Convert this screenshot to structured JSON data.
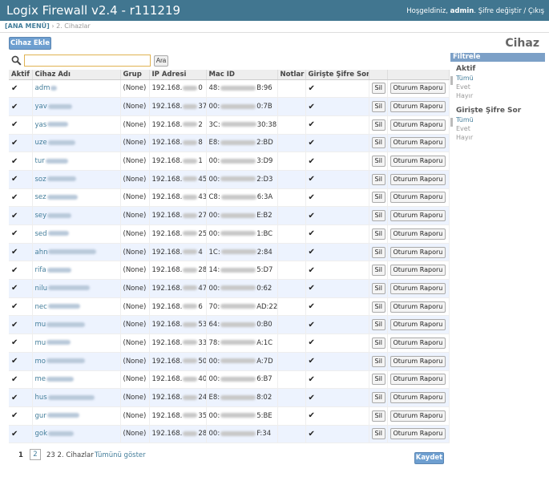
{
  "header": {
    "brand": "Logix Firewall v2.4 - r111219",
    "welcome": "Hoşgeldiniz,",
    "user": "admin",
    "change_password": "Şifre değiştir",
    "separator": "/",
    "logout": "Çıkış"
  },
  "breadcrumb": {
    "home": "[ANA MENÜ]",
    "sep": "›",
    "current": "2. Cihazlar"
  },
  "actions": {
    "add_label": "Cihaz Ekle",
    "page_title": "Cihaz"
  },
  "search": {
    "value": "",
    "button": "Ara"
  },
  "table": {
    "columns": [
      "Aktif",
      "Cihaz Adı",
      "Grup",
      "IP Adresi",
      "Mac ID",
      "Notlar",
      "Girişte Şifre Sor",
      "",
      ""
    ],
    "delete_label": "Sil",
    "report_label": "Oturum Raporu",
    "rows": [
      {
        "name": "adm",
        "group": "(None)",
        "ip_a": "192.168.",
        "ip_b": "0",
        "mac_a": "48:",
        "mac_b": "B:96"
      },
      {
        "name": "yav",
        "group": "(None)",
        "ip_a": "192.168.",
        "ip_b": "37",
        "mac_a": "00:",
        "mac_b": "0:7B"
      },
      {
        "name": "yas",
        "group": "(None)",
        "ip_a": "192.168.",
        "ip_b": "2",
        "mac_a": "3C:",
        "mac_b": "30:38"
      },
      {
        "name": "uze",
        "group": "(None)",
        "ip_a": "192.168.",
        "ip_b": "8",
        "mac_a": "E8:",
        "mac_b": "2:BD"
      },
      {
        "name": "tur",
        "group": "(None)",
        "ip_a": "192.168.",
        "ip_b": "1",
        "mac_a": "00:",
        "mac_b": "3:D9"
      },
      {
        "name": "soz",
        "group": "(None)",
        "ip_a": "192.168.",
        "ip_b": "45",
        "mac_a": "00:",
        "mac_b": "2:D3"
      },
      {
        "name": "sez",
        "group": "(None)",
        "ip_a": "192.168.",
        "ip_b": "43",
        "mac_a": "C8:",
        "mac_b": "6:3A"
      },
      {
        "name": "sey",
        "group": "(None)",
        "ip_a": "192.168.",
        "ip_b": "27",
        "mac_a": "00:",
        "mac_b": "E:B2"
      },
      {
        "name": "sed",
        "group": "(None)",
        "ip_a": "192.168.",
        "ip_b": "25",
        "mac_a": "00:",
        "mac_b": "1:BC"
      },
      {
        "name": "ahn",
        "group": "(None)",
        "ip_a": "192.168.",
        "ip_b": "4",
        "mac_a": "1C:",
        "mac_b": "2:84"
      },
      {
        "name": "rifa",
        "group": "(None)",
        "ip_a": "192.168.",
        "ip_b": "28",
        "mac_a": "14:",
        "mac_b": "5:D7"
      },
      {
        "name": "nilu",
        "group": "(None)",
        "ip_a": "192.168.",
        "ip_b": "47",
        "mac_a": "00:",
        "mac_b": "0:62"
      },
      {
        "name": "nec",
        "group": "(None)",
        "ip_a": "192.168.",
        "ip_b": "6",
        "mac_a": "70:",
        "mac_b": "AD:22"
      },
      {
        "name": "mu",
        "group": "(None)",
        "ip_a": "192.168.",
        "ip_b": "53",
        "mac_a": "64:",
        "mac_b": "0:B0"
      },
      {
        "name": "mu",
        "group": "(None)",
        "ip_a": "192.168.",
        "ip_b": "33",
        "mac_a": "78:",
        "mac_b": "A:1C"
      },
      {
        "name": "mo",
        "group": "(None)",
        "ip_a": "192.168.",
        "ip_b": "50",
        "mac_a": "00:",
        "mac_b": "A:7D"
      },
      {
        "name": "me",
        "group": "(None)",
        "ip_a": "192.168.",
        "ip_b": "40",
        "mac_a": "00:",
        "mac_b": "6:B7"
      },
      {
        "name": "hus",
        "group": "(None)",
        "ip_a": "192.168.",
        "ip_b": "24",
        "mac_a": "E8:",
        "mac_b": "8:02"
      },
      {
        "name": "gur",
        "group": "(None)",
        "ip_a": "192.168.",
        "ip_b": "35",
        "mac_a": "00:",
        "mac_b": "5:BE"
      },
      {
        "name": "gok",
        "group": "(None)",
        "ip_a": "192.168.",
        "ip_b": "28",
        "mac_a": "00:",
        "mac_b": "F:34"
      }
    ]
  },
  "pager": {
    "current": "1",
    "page2": "2",
    "count": "23 2. Cihazlar",
    "show_all": "Tümünü göster",
    "save": "Kaydet"
  },
  "filter": {
    "title": "Filtrele",
    "groups": [
      {
        "heading": "Aktif",
        "options": [
          "Tümü",
          "Evet",
          "Hayır"
        ]
      },
      {
        "heading": "Girişte Şifre Sor",
        "options": [
          "Tümü",
          "Evet",
          "Hayır"
        ]
      }
    ]
  },
  "colors": {
    "header_bg": "#417690",
    "link": "#447e9b",
    "row_alt": "#edf3fe",
    "button_blue": "#6e9fd0"
  }
}
